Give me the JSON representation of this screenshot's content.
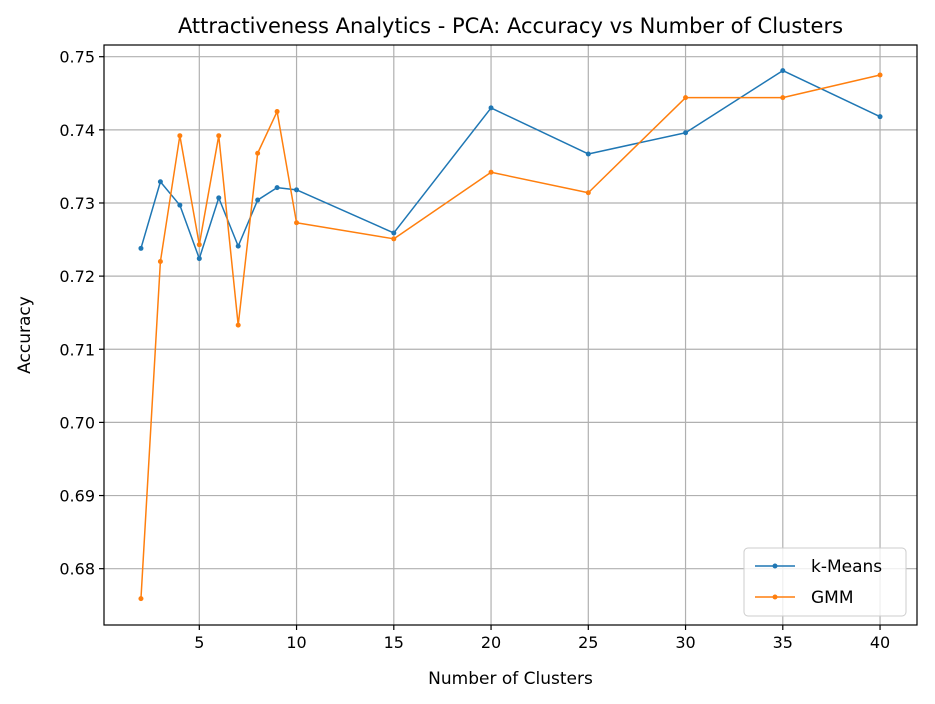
{
  "chart_data": {
    "type": "line",
    "title": "Attractiveness Analytics - PCA: Accuracy vs Number of Clusters",
    "xlabel": "Number of Clusters",
    "ylabel": "Accuracy",
    "xlim": [
      0.1,
      41.9
    ],
    "ylim": [
      0.6723,
      0.7516
    ],
    "xticks": [
      5,
      10,
      15,
      20,
      25,
      30,
      35,
      40
    ],
    "yticks": [
      0.68,
      0.69,
      0.7,
      0.71,
      0.72,
      0.73,
      0.74,
      0.75
    ],
    "xtick_labels": [
      "5",
      "10",
      "15",
      "20",
      "25",
      "30",
      "35",
      "40"
    ],
    "ytick_labels": [
      "0.68",
      "0.69",
      "0.70",
      "0.71",
      "0.72",
      "0.73",
      "0.74",
      "0.75"
    ],
    "grid": true,
    "legend_position": "lower-right",
    "x": [
      2,
      3,
      4,
      5,
      6,
      7,
      8,
      9,
      10,
      15,
      20,
      25,
      30,
      35,
      40
    ],
    "series": [
      {
        "name": "k-Means",
        "color": "#1f77b4",
        "values": [
          0.7238,
          0.7329,
          0.7297,
          0.7224,
          0.7307,
          0.7241,
          0.7304,
          0.7321,
          0.7318,
          0.7259,
          0.743,
          0.7367,
          0.7396,
          0.7481,
          0.7418
        ]
      },
      {
        "name": "GMM",
        "color": "#ff7f0e",
        "values": [
          0.6759,
          0.722,
          0.7392,
          0.7243,
          0.7392,
          0.7133,
          0.7368,
          0.7425,
          0.7273,
          0.7251,
          0.7342,
          0.7314,
          0.7444,
          0.7444,
          0.7475
        ]
      }
    ]
  }
}
